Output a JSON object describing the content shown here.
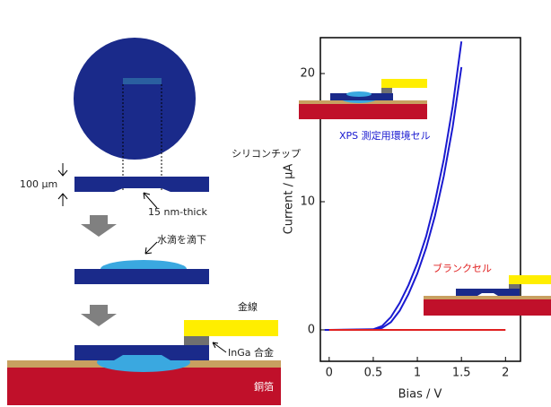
{
  "diagram": {
    "chip_label": "シリコンチップ",
    "thickness_label": "100 μm",
    "membrane_label": "15 nm-thick",
    "droplet_label": "水滴を滴下",
    "wire_label": "金線",
    "alloy_label": "InGa 合金",
    "foil_label": "銅箔"
  },
  "chart_data": {
    "type": "line",
    "x_label": "Bias / V",
    "y_label": "Current / μA",
    "annotations": [
      {
        "text": "XPS 測定用環境セル",
        "color": "#1a1ad0"
      },
      {
        "text": "ブランクセル",
        "color": "#e02020"
      }
    ],
    "x": [
      -0.05,
      0,
      0.5,
      0.6,
      0.7,
      0.8,
      0.9,
      1.0,
      1.1,
      1.2,
      1.3,
      1.4,
      1.5,
      2.0
    ],
    "series": [
      {
        "color": "#1a1ad0",
        "values": [
          0,
          0,
          0.05,
          0.3,
          1.0,
          2.1,
          3.5,
          5.2,
          7.3,
          10,
          13.3,
          17.4,
          22.5,
          null
        ]
      },
      {
        "color": "#1a1ad0",
        "values": [
          0,
          0,
          0,
          0.15,
          0.6,
          1.5,
          2.8,
          4.4,
          6.4,
          8.9,
          12,
          15.8,
          20.5,
          null
        ]
      },
      {
        "color": "#e02020",
        "values": [
          null,
          0,
          0,
          0,
          0,
          0,
          0,
          0,
          0,
          0,
          0,
          0,
          0,
          0
        ]
      }
    ],
    "xlim": [
      -0.1,
      2.17
    ],
    "ylim": [
      -2.45,
      22.8
    ],
    "xticks": [
      0,
      0.5,
      1,
      1.5,
      2
    ],
    "yticks": [
      0,
      10,
      20
    ]
  }
}
